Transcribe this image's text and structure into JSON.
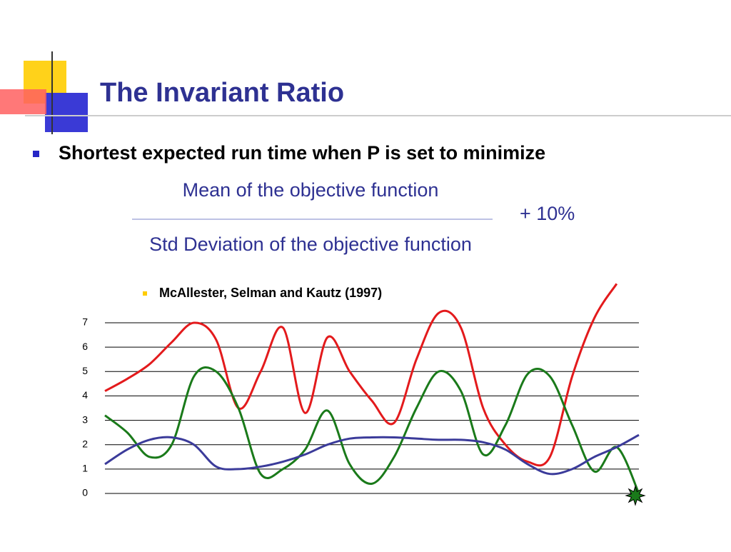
{
  "slide": {
    "title": "The Invariant Ratio",
    "bullet": "Shortest expected run time when P is set to minimize",
    "numerator": "Mean of the objective function",
    "denominator": "Std Deviation of the objective function",
    "addend": "+ 10%",
    "sub_bullet": "McAllester, Selman and Kautz (1997)"
  },
  "chart_data": {
    "type": "line",
    "ylim": [
      0,
      7
    ],
    "yticks": [
      0,
      1,
      2,
      3,
      4,
      5,
      6,
      7
    ],
    "grid": true,
    "series": [
      {
        "color": "#e31a1c",
        "values": [
          4.2,
          4.7,
          5.3,
          6.2,
          7.0,
          6.3,
          3.5,
          5.0,
          6.8,
          3.3,
          6.4,
          5.0,
          3.8,
          2.9,
          5.5,
          7.4,
          6.8,
          3.5,
          2.0,
          1.3,
          1.5,
          4.8,
          7.2,
          8.6,
          null
        ]
      },
      {
        "color": "#1a7a1a",
        "values": [
          3.2,
          2.5,
          1.5,
          2.0,
          4.8,
          5.0,
          3.5,
          0.8,
          1.0,
          1.8,
          3.4,
          1.2,
          0.4,
          1.5,
          3.5,
          5.0,
          4.2,
          1.6,
          2.8,
          4.9,
          4.8,
          2.8,
          0.9,
          1.9,
          0
        ]
      },
      {
        "color": "#3b3b9a",
        "values": [
          1.2,
          1.8,
          2.2,
          2.3,
          2.0,
          1.1,
          1.0,
          1.1,
          1.3,
          1.6,
          2.0,
          2.25,
          2.3,
          2.3,
          2.25,
          2.2,
          2.2,
          2.1,
          1.8,
          1.2,
          0.8,
          1.0,
          1.5,
          1.9,
          2.4
        ]
      }
    ]
  }
}
